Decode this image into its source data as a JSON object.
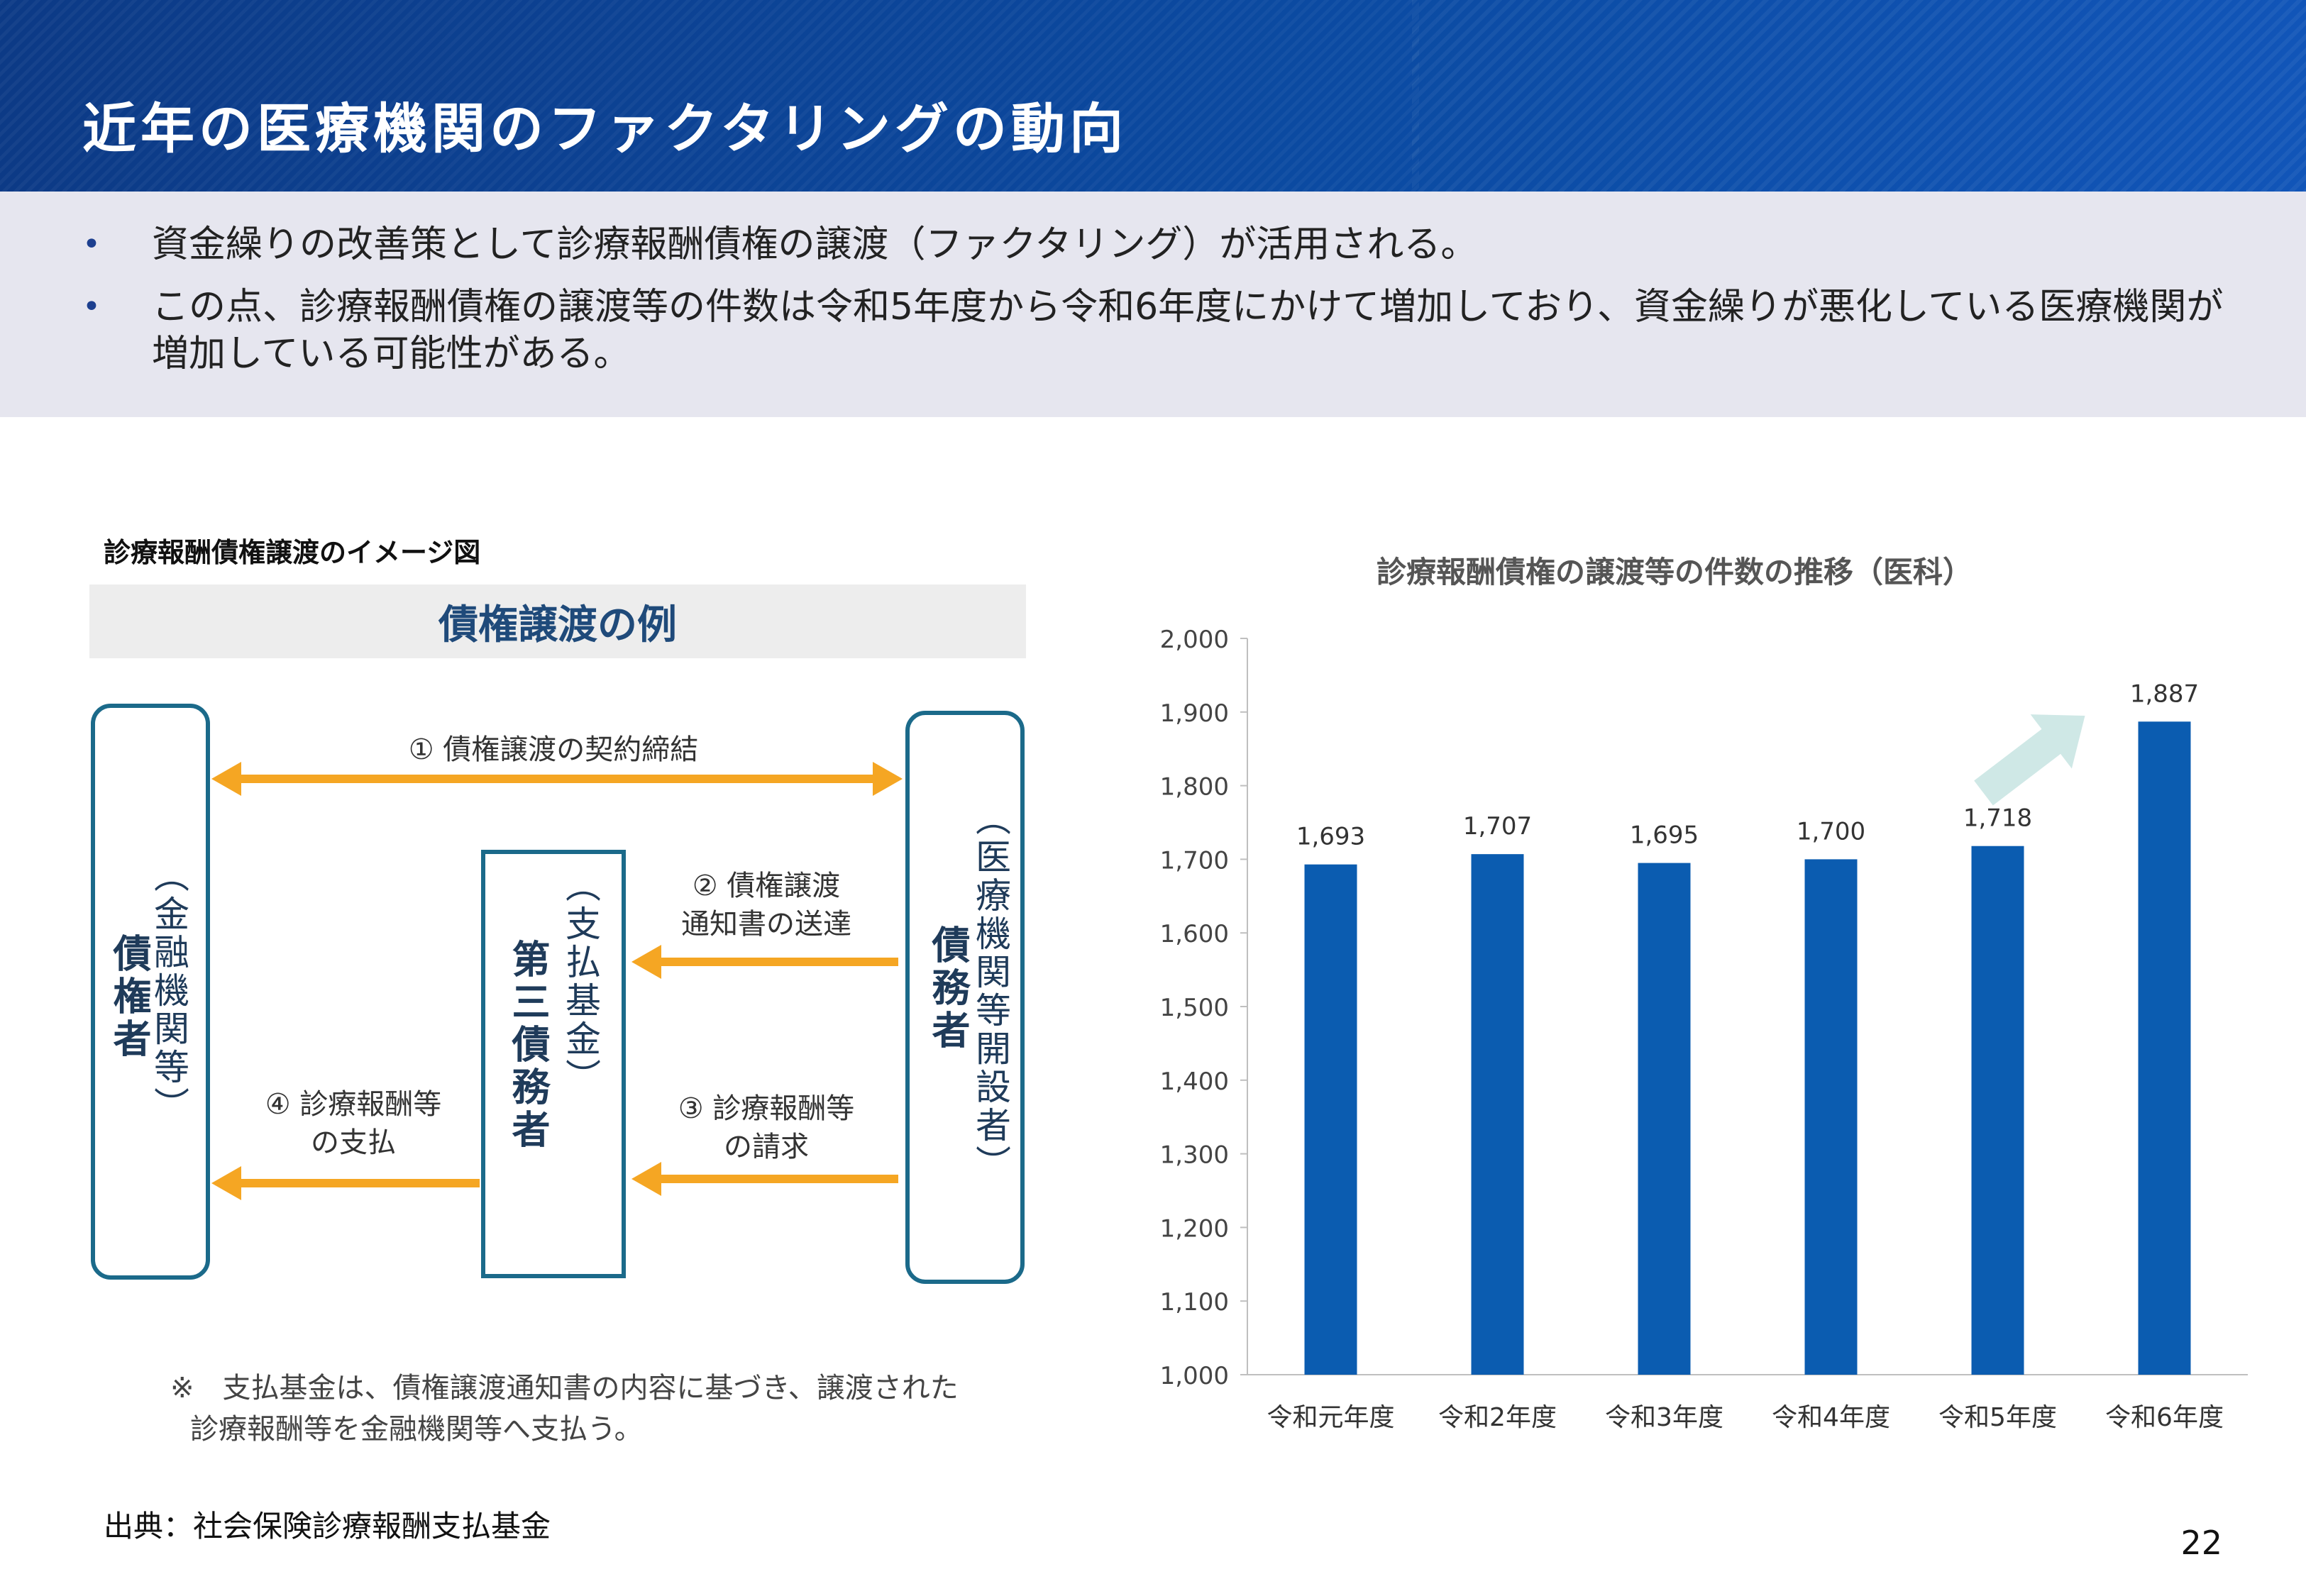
{
  "header": {
    "title": "近年の医療機関のファクタリングの動向"
  },
  "summary": {
    "bullet_symbol": "•",
    "items": [
      "資金繰りの改善策として診療報酬債権の譲渡（ファクタリング）が活用される。",
      "この点、診療報酬債権の譲渡等の件数は令和5年度から令和6年度にかけて増加しており、資金繰りが悪化している医療機関が増加している可能性がある。"
    ]
  },
  "diagram": {
    "title": "診療報酬債権譲渡のイメージ図",
    "example_label": "債権譲渡の例",
    "creditor": {
      "sub": "（金融機関等）",
      "main": "債権者"
    },
    "third_party": {
      "sub": "（支払基金）",
      "main": "第三債務者"
    },
    "debtor": {
      "sub": "（医療機関等開設者）",
      "main": "債務者"
    },
    "arrows": {
      "a1": "① 債権譲渡の契約締結",
      "a2_line1": "② 債権譲渡",
      "a2_line2": "通知書の送達",
      "a3_line1": "③ 診療報酬等",
      "a3_line2": "の請求",
      "a4_line1": "④ 診療報酬等",
      "a4_line2": "の支払"
    },
    "note_line1": "※　支払基金は、債権譲渡通知書の内容に基づき、譲渡された",
    "note_line2": "診療報酬等を金融機関等へ支払う。",
    "arrow_color": "#f5a623",
    "box_color": "#1b6a8a"
  },
  "source": "出典：社会保険診療報酬支払基金",
  "page_number": "22",
  "chart_data": {
    "type": "bar",
    "title": "診療報酬債権の譲渡等の件数の推移（医科）",
    "categories": [
      "令和元年度",
      "令和2年度",
      "令和3年度",
      "令和4年度",
      "令和5年度",
      "令和6年度"
    ],
    "values": [
      1693,
      1707,
      1695,
      1700,
      1718,
      1887
    ],
    "value_labels": [
      "1,693",
      "1,707",
      "1,695",
      "1,700",
      "1,718",
      "1,887"
    ],
    "ylim": [
      1000,
      2000
    ],
    "yticks": [
      "1,000",
      "1,100",
      "1,200",
      "1,300",
      "1,400",
      "1,500",
      "1,600",
      "1,700",
      "1,800",
      "1,900",
      "2,000"
    ],
    "ytick_values": [
      1000,
      1100,
      1200,
      1300,
      1400,
      1500,
      1600,
      1700,
      1800,
      1900,
      2000
    ],
    "bar_color": "#0b5cb0",
    "trend_arrow_color": "#cfe8e6",
    "grid": false
  }
}
